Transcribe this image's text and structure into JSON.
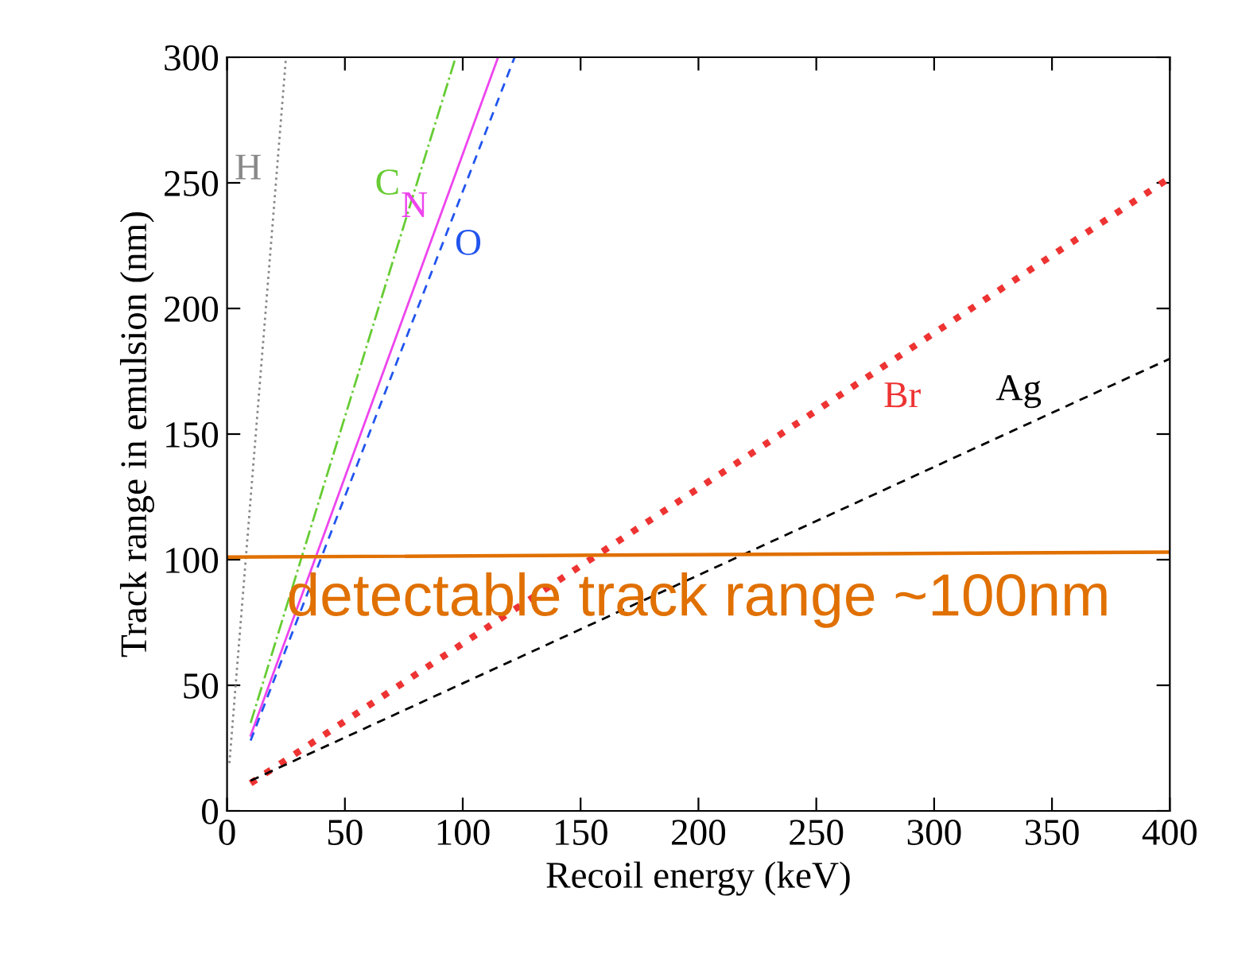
{
  "chart_data": {
    "type": "line",
    "xlabel": "Recoil energy (keV)",
    "ylabel": "Track range in emulsion (nm)",
    "xlim": [
      0,
      400
    ],
    "ylim": [
      0,
      300
    ],
    "xticks": [
      0,
      50,
      100,
      150,
      200,
      250,
      300,
      350,
      400
    ],
    "yticks": [
      0,
      50,
      100,
      150,
      200,
      250,
      300
    ],
    "grid": false,
    "legend": false,
    "marker": "none",
    "series": [
      {
        "name": "H",
        "color": "#888888",
        "line_style": "dotted",
        "x": [
          1,
          25
        ],
        "values": [
          19,
          300
        ]
      },
      {
        "name": "C",
        "color": "#66cc33",
        "line_style": "dashdot",
        "x": [
          10,
          97
        ],
        "values": [
          35,
          300
        ]
      },
      {
        "name": "N",
        "color": "#ee44ee",
        "line_style": "solid",
        "x": [
          10,
          115
        ],
        "values": [
          30,
          300
        ]
      },
      {
        "name": "O",
        "color": "#2255ee",
        "line_style": "dashed",
        "x": [
          10,
          122
        ],
        "values": [
          28,
          300
        ]
      },
      {
        "name": "Br",
        "color": "#ee3333",
        "line_style": "dotted",
        "x": [
          10,
          400
        ],
        "values": [
          11,
          252
        ]
      },
      {
        "name": "Ag",
        "color": "#000000",
        "line_style": "dashed",
        "x": [
          10,
          400
        ],
        "values": [
          12,
          180
        ]
      },
      {
        "color": "#e07000",
        "line_style": "solid",
        "x": [
          0,
          400
        ],
        "values": [
          101,
          103
        ]
      }
    ],
    "annotations": [
      "detectable track range ~100nm"
    ]
  }
}
